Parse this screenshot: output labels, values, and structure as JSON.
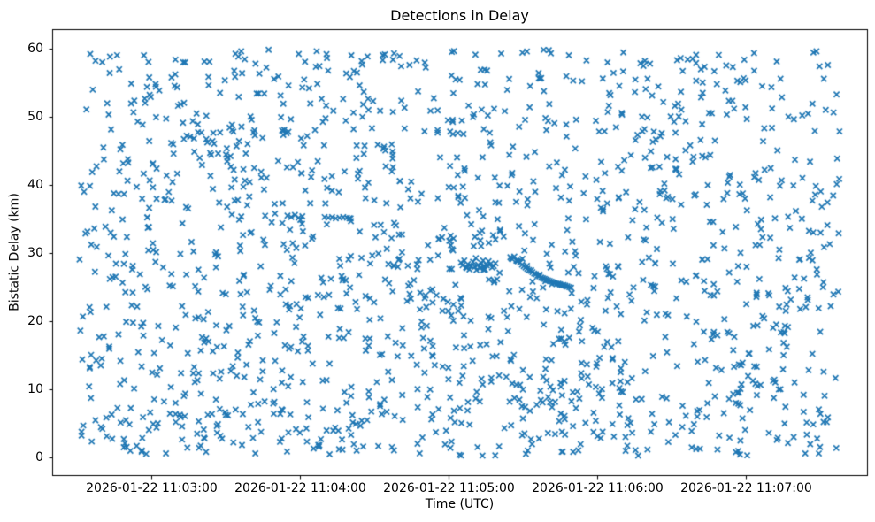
{
  "chart_data": {
    "type": "scatter",
    "title": "Detections in Delay",
    "xlabel": "Time (UTC)",
    "ylabel": "Bistatic Delay (km)",
    "marker": {
      "style": "x",
      "color": "#1f77b4",
      "half_size_px": 3.1,
      "stroke_px": 1.7
    },
    "axis_color": "#000000",
    "x_axis": {
      "start_utc": "2026-01-22 11:02:20",
      "span_s": 329,
      "ticks": [
        {
          "offset_s": 40,
          "label": "2026-01-22 11:03:00"
        },
        {
          "offset_s": 100,
          "label": "2026-01-22 11:04:00"
        },
        {
          "offset_s": 160,
          "label": "2026-01-22 11:05:00"
        },
        {
          "offset_s": 220,
          "label": "2026-01-22 11:06:00"
        },
        {
          "offset_s": 280,
          "label": "2026-01-22 11:07:00"
        }
      ]
    },
    "y_axis": {
      "min": -2.7,
      "max": 62.85,
      "ticks": [
        0,
        10,
        20,
        30,
        40,
        50,
        60
      ]
    },
    "series": [
      {
        "name": "clutter-detections",
        "kind": "uniform-random",
        "count": 1600,
        "t_range_s": [
          11,
          318
        ],
        "delay_range_km": [
          0.2,
          59.9
        ],
        "seed": 1337
      },
      {
        "name": "target-track",
        "kind": "explicit",
        "points": [
          [
            165.0,
            28.6
          ],
          [
            165.7,
            28.2
          ],
          [
            166.4,
            28.9
          ],
          [
            167.1,
            27.9
          ],
          [
            167.8,
            28.4
          ],
          [
            168.5,
            27.6
          ],
          [
            169.2,
            28.1
          ],
          [
            169.9,
            28.7
          ],
          [
            170.6,
            28.0
          ],
          [
            171.3,
            27.5
          ],
          [
            172.0,
            28.3
          ],
          [
            172.7,
            27.8
          ],
          [
            173.4,
            28.5
          ],
          [
            174.1,
            28.0
          ],
          [
            174.8,
            27.6
          ],
          [
            175.5,
            28.2
          ],
          [
            176.2,
            28.8
          ],
          [
            176.9,
            28.4
          ],
          [
            177.6,
            27.9
          ],
          [
            178.3,
            28.1
          ],
          [
            179.0,
            28.5
          ],
          [
            185.0,
            29.4
          ],
          [
            185.8,
            29.1
          ],
          [
            186.6,
            29.5
          ],
          [
            187.4,
            28.9
          ],
          [
            188.0,
            28.8
          ],
          [
            188.9,
            28.6
          ],
          [
            189.7,
            28.3
          ],
          [
            190.4,
            28.1
          ],
          [
            191.1,
            27.9
          ],
          [
            191.8,
            27.7
          ],
          [
            192.5,
            27.5
          ],
          [
            193.2,
            27.4
          ],
          [
            193.9,
            27.2
          ],
          [
            194.6,
            27.0
          ],
          [
            195.3,
            26.9
          ],
          [
            196.0,
            26.7
          ],
          [
            196.7,
            26.6
          ],
          [
            197.4,
            26.4
          ],
          [
            198.1,
            26.3
          ],
          [
            198.8,
            26.2
          ],
          [
            199.5,
            26.1
          ],
          [
            200.2,
            26.0
          ],
          [
            200.9,
            25.9
          ],
          [
            201.6,
            25.8
          ],
          [
            202.3,
            25.7
          ],
          [
            203.0,
            25.6
          ],
          [
            203.7,
            25.5
          ],
          [
            204.4,
            25.5
          ],
          [
            205.1,
            25.4
          ],
          [
            205.8,
            25.3
          ],
          [
            206.5,
            25.3
          ],
          [
            207.2,
            25.2
          ],
          [
            208.0,
            25.1
          ],
          [
            208.8,
            25.0
          ],
          [
            209.5,
            24.9
          ]
        ]
      },
      {
        "name": "dense-cluster-35km",
        "kind": "explicit",
        "points": [
          [
            95.0,
            35.5
          ],
          [
            96.5,
            35.3
          ],
          [
            98.0,
            35.6
          ],
          [
            99.5,
            35.2
          ],
          [
            101.0,
            35.4
          ],
          [
            110.0,
            35.3
          ],
          [
            111.5,
            35.2
          ],
          [
            113.0,
            35.3
          ],
          [
            114.5,
            35.1
          ],
          [
            116.0,
            35.2
          ],
          [
            117.5,
            35.3
          ],
          [
            119.0,
            35.2
          ],
          [
            120.5,
            35.1
          ]
        ]
      }
    ]
  }
}
